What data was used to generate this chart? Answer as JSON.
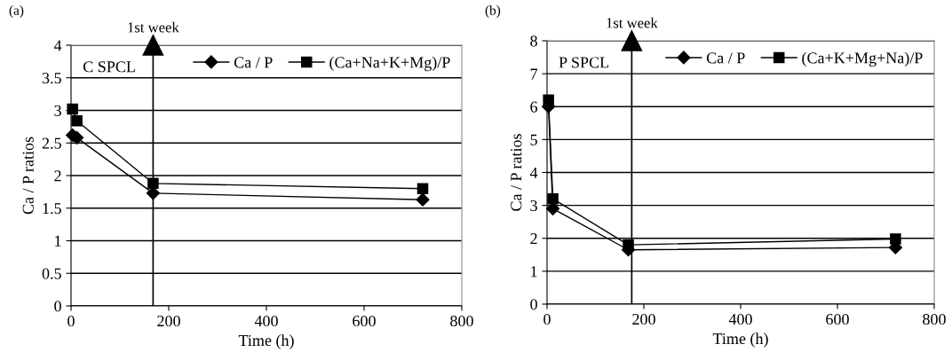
{
  "chart_data": [
    {
      "type": "line",
      "title": "(a)",
      "xlabel": "Time (h)",
      "ylabel": "Ca / P ratios",
      "annotations": [
        "C SPCL"
      ],
      "x": [
        3,
        12,
        168,
        720
      ],
      "series": [
        {
          "name": "Ca / P",
          "color": "#000000",
          "marker": "diamond",
          "values": [
            2.62,
            2.58,
            1.73,
            1.63
          ]
        },
        {
          "name": "(Ca+Na+K+Mg)/P",
          "color": "#000000",
          "marker": "square",
          "values": [
            3.02,
            2.84,
            1.88,
            1.8
          ]
        }
      ],
      "ref_lines": [
        {
          "axis": "x",
          "value": 168,
          "label": "1st week",
          "color": "#000000"
        }
      ],
      "xlim": [
        0,
        800
      ],
      "xticks": [
        0,
        200,
        400,
        600,
        800
      ],
      "ylim": [
        0,
        4
      ],
      "yticks": [
        0,
        0.5,
        1,
        1.5,
        2,
        2.5,
        3,
        3.5,
        4
      ],
      "grid": "y",
      "legend": "top right",
      "line_style": "solid"
    },
    {
      "type": "line",
      "title": "(b)",
      "xlabel": "Time (h)",
      "ylabel": "Ca / P ratios",
      "annotations": [
        "P SPCL"
      ],
      "x": [
        3,
        12,
        168,
        720
      ],
      "series": [
        {
          "name": "Ca / P",
          "color": "#000000",
          "marker": "diamond",
          "values": [
            6.0,
            2.9,
            1.65,
            1.72
          ]
        },
        {
          "name": "(Ca+K+Mg+Na)/P",
          "color": "#000000",
          "marker": "square",
          "values": [
            6.2,
            3.2,
            1.8,
            1.98
          ]
        }
      ],
      "ref_lines": [
        {
          "axis": "x",
          "value": 175,
          "label": "1st week",
          "color": "#000000"
        }
      ],
      "xlim": [
        0,
        800
      ],
      "xticks": [
        0,
        200,
        400,
        600,
        800
      ],
      "ylim": [
        0,
        8
      ],
      "yticks": [
        0,
        1,
        2,
        3,
        4,
        5,
        6,
        7,
        8
      ],
      "grid": "y",
      "legend": "top right",
      "line_style": "solid"
    }
  ]
}
